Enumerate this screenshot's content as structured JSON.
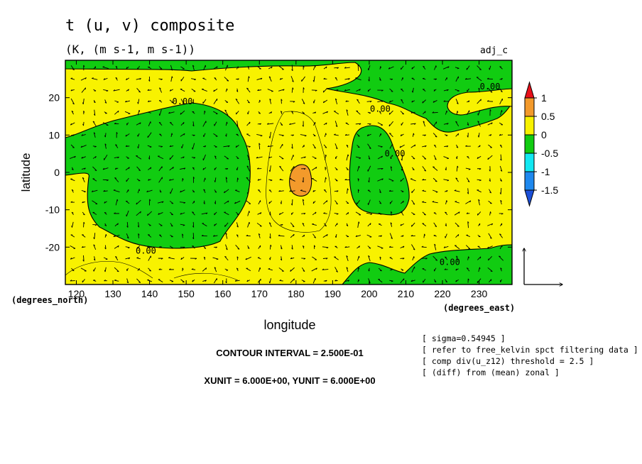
{
  "chart_data": {
    "type": "heatmap",
    "title": "t (u, v) composite",
    "subtitle": "(K, (m s-1, m s-1))",
    "tag": "adj_c",
    "xlabel": "longitude",
    "ylabel": "latitude",
    "x_units": "(degrees_east)",
    "y_units": "(degrees_north)",
    "xlim": [
      117,
      239
    ],
    "ylim": [
      -30,
      30
    ],
    "x_ticks": [
      "120",
      "130",
      "140",
      "150",
      "160",
      "170",
      "180",
      "190",
      "200",
      "210",
      "220",
      "230"
    ],
    "x_tick_values": [
      120,
      130,
      140,
      150,
      160,
      170,
      180,
      190,
      200,
      210,
      220,
      230
    ],
    "y_ticks": [
      "20",
      "10",
      "0",
      "-10",
      "-20"
    ],
    "y_tick_values": [
      20,
      10,
      0,
      -10,
      -20
    ],
    "colorbar": {
      "labels": [
        "1",
        "0.5",
        "0",
        "-0.5",
        "-1",
        "-1.5"
      ],
      "levels": [
        1,
        0.5,
        0,
        -0.5,
        -1,
        -1.5
      ],
      "colors": [
        "#e8101a",
        "#f39a2b",
        "#f8f200",
        "#11cc11",
        "#12e8f2",
        "#1e88ee",
        "#1b4fd8"
      ]
    },
    "colors": {
      "positive": "#f8f200",
      "negative": "#11cc11",
      "strong_positive": "#f39a2b"
    },
    "contour_label": "0.00",
    "contour_label_positions": [
      {
        "lon": 149,
        "lat": 19
      },
      {
        "lon": 139,
        "lat": -21
      },
      {
        "lon": 203,
        "lat": 17
      },
      {
        "lon": 207,
        "lat": 5
      },
      {
        "lon": 222,
        "lat": -24
      },
      {
        "lon": 233,
        "lat": 23
      }
    ],
    "regions": [
      {
        "sign": "negative",
        "label": "green region west (121E-171E, 15S-18N)"
      },
      {
        "sign": "negative",
        "label": "green region central (195E-210E, 12S-12N)"
      },
      {
        "sign": "negative",
        "label": "green region north (117E-239E, 22N-30N)"
      },
      {
        "sign": "negative",
        "label": "green region south-east (193E-239E, 30S-20S)"
      },
      {
        "sign": "positive",
        "label": "orange maximum (178E-184E, 7S-2N)"
      }
    ],
    "contour_interval": "CONTOUR INTERVAL = 2.500E-01",
    "vector_units": "XUNIT = 6.000E+00, YUNIT = 6.000E+00",
    "notes": [
      "[ sigma=0.54945 ]",
      "[ refer to free_kelvin spct filtering data ]",
      "[ comp div(u_z12) threshold = 2.5 ]",
      "[ (diff) from (mean) zonal ]"
    ],
    "grid": false
  }
}
